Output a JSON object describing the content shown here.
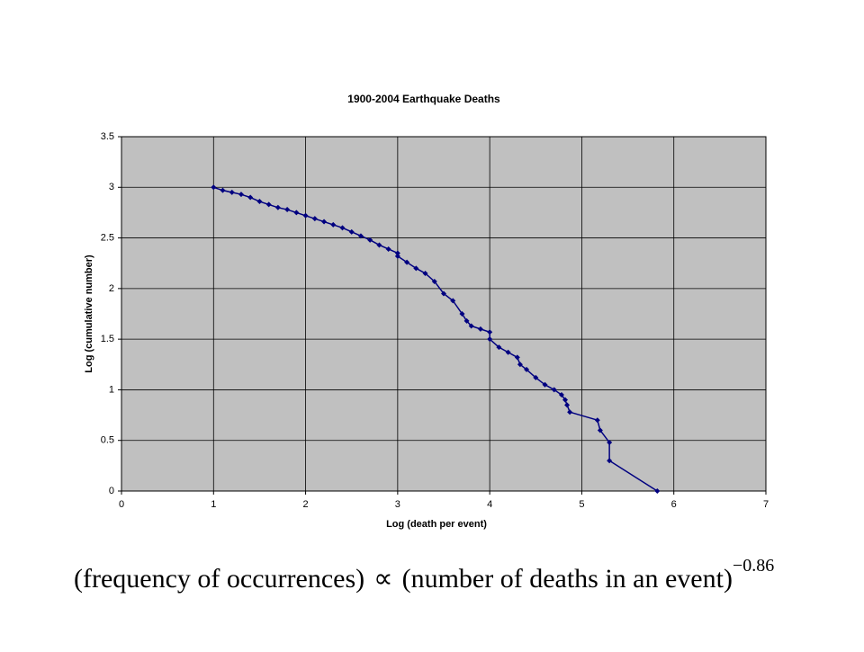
{
  "chart_data": {
    "type": "scatter-line",
    "title": "1900-2004 Earthquake Deaths",
    "x_label": "Log (death per event)",
    "y_label": "Log (cumulative number)",
    "series": [
      {
        "color": "#000080",
        "x": [
          1,
          1.1,
          1.2,
          1.3,
          1.4,
          1.5,
          1.6,
          1.7,
          1.8,
          1.9,
          2.0,
          2.1,
          2.2,
          2.3,
          2.4,
          2.5,
          2.6,
          2.7,
          2.8,
          2.9,
          3.0,
          3.0,
          3.1,
          3.2,
          3.3,
          3.4,
          3.5,
          3.6,
          3.7,
          3.75,
          3.8,
          3.9,
          4.0,
          4.0,
          4.1,
          4.2,
          4.3,
          4.33,
          4.4,
          4.5,
          4.6,
          4.7,
          4.78,
          4.82,
          4.84,
          4.87,
          5.17,
          5.2,
          5.3,
          5.3,
          5.82
        ],
        "values": [
          3,
          2.97,
          2.95,
          2.93,
          2.9,
          2.86,
          2.83,
          2.8,
          2.78,
          2.75,
          2.72,
          2.69,
          2.66,
          2.63,
          2.6,
          2.56,
          2.52,
          2.48,
          2.43,
          2.39,
          2.35,
          2.32,
          2.26,
          2.2,
          2.15,
          2.07,
          1.95,
          1.88,
          1.75,
          1.68,
          1.63,
          1.6,
          1.57,
          1.5,
          1.42,
          1.37,
          1.32,
          1.25,
          1.2,
          1.12,
          1.05,
          1.0,
          0.95,
          0.9,
          0.85,
          0.78,
          0.7,
          0.6,
          0.48,
          0.3,
          0
        ]
      }
    ],
    "xlim": [
      0,
      7
    ],
    "xticks": [
      0,
      1,
      2,
      3,
      4,
      5,
      6,
      7
    ],
    "ylim": [
      0,
      3.5
    ],
    "yticks": [
      0,
      0.5,
      1,
      1.5,
      2,
      2.5,
      3,
      3.5
    ],
    "grid": true,
    "plot_background": "#c0c0c0"
  },
  "formula": {
    "lhs": "(frequency of occurrences)",
    "relation": "∝",
    "rhs": "(number of deaths in an event)",
    "exponent": "−0.86"
  }
}
